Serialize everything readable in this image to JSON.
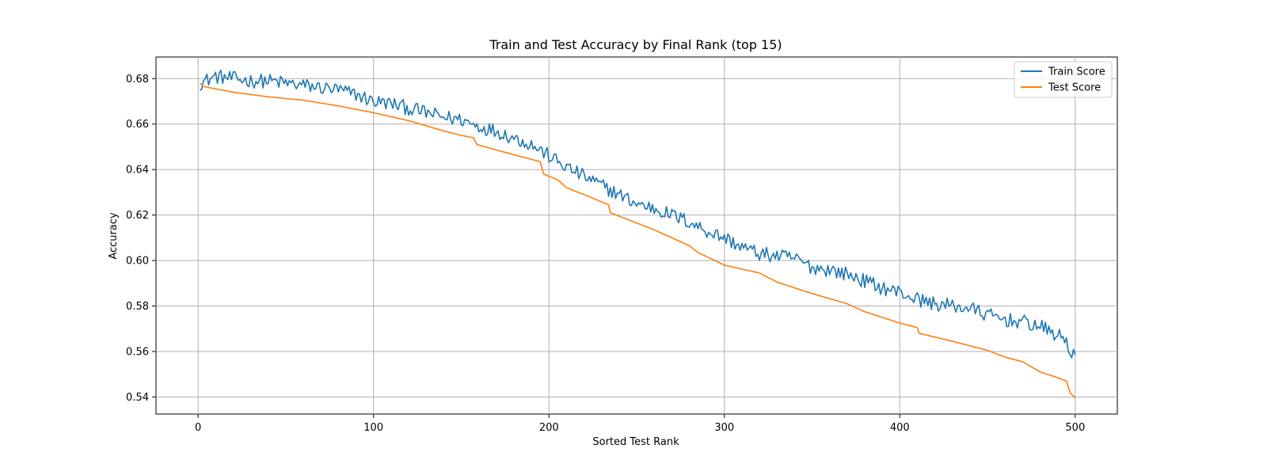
{
  "chart_data": {
    "type": "line",
    "title": "Train and Test Accuracy by Final Rank (top 15)",
    "xlabel": "Sorted Test Rank",
    "ylabel": "Accuracy",
    "xlim": [
      -24,
      524
    ],
    "ylim": [
      0.5325,
      0.6895
    ],
    "x_ticks": [
      0,
      100,
      200,
      300,
      400,
      500
    ],
    "y_ticks": [
      0.54,
      0.56,
      0.58,
      0.6,
      0.62,
      0.64,
      0.66,
      0.68
    ],
    "y_tick_labels": [
      "0.54",
      "0.56",
      "0.58",
      "0.60",
      "0.62",
      "0.64",
      "0.66",
      "0.68"
    ],
    "grid": true,
    "legend_position": "top-right",
    "x_points": [
      1,
      500
    ],
    "series": [
      {
        "name": "Train Score",
        "color": "#1f77b4",
        "anchors": [
          [
            1,
            0.678
          ],
          [
            10,
            0.681
          ],
          [
            20,
            0.68
          ],
          [
            30,
            0.679
          ],
          [
            40,
            0.679
          ],
          [
            50,
            0.678
          ],
          [
            60,
            0.677
          ],
          [
            70,
            0.676
          ],
          [
            80,
            0.675
          ],
          [
            90,
            0.673
          ],
          [
            100,
            0.67
          ],
          [
            110,
            0.669
          ],
          [
            120,
            0.667
          ],
          [
            130,
            0.665
          ],
          [
            140,
            0.663
          ],
          [
            150,
            0.662
          ],
          [
            160,
            0.659
          ],
          [
            170,
            0.657
          ],
          [
            180,
            0.654
          ],
          [
            190,
            0.651
          ],
          [
            200,
            0.646
          ],
          [
            210,
            0.641
          ],
          [
            220,
            0.637
          ],
          [
            230,
            0.633
          ],
          [
            240,
            0.629
          ],
          [
            250,
            0.625
          ],
          [
            260,
            0.623
          ],
          [
            270,
            0.62
          ],
          [
            280,
            0.617
          ],
          [
            290,
            0.613
          ],
          [
            300,
            0.61
          ],
          [
            310,
            0.606
          ],
          [
            320,
            0.603
          ],
          [
            330,
            0.602
          ],
          [
            340,
            0.601
          ],
          [
            350,
            0.597
          ],
          [
            360,
            0.596
          ],
          [
            370,
            0.594
          ],
          [
            380,
            0.591
          ],
          [
            390,
            0.588
          ],
          [
            400,
            0.586
          ],
          [
            410,
            0.583
          ],
          [
            420,
            0.581
          ],
          [
            430,
            0.58
          ],
          [
            440,
            0.579
          ],
          [
            450,
            0.576
          ],
          [
            460,
            0.574
          ],
          [
            470,
            0.573
          ],
          [
            480,
            0.571
          ],
          [
            490,
            0.567
          ],
          [
            495,
            0.565
          ],
          [
            497,
            0.56
          ],
          [
            500,
            0.558
          ]
        ],
        "noise": 0.0032
      },
      {
        "name": "Test Score",
        "color": "#ff7f0e",
        "anchors": [
          [
            1,
            0.678
          ],
          [
            3,
            0.6765
          ],
          [
            10,
            0.6755
          ],
          [
            20,
            0.674
          ],
          [
            40,
            0.672
          ],
          [
            60,
            0.6705
          ],
          [
            80,
            0.668
          ],
          [
            100,
            0.665
          ],
          [
            120,
            0.6615
          ],
          [
            140,
            0.657
          ],
          [
            150,
            0.655
          ],
          [
            157,
            0.654
          ],
          [
            159,
            0.651
          ],
          [
            180,
            0.6465
          ],
          [
            195,
            0.6435
          ],
          [
            197,
            0.638
          ],
          [
            205,
            0.6355
          ],
          [
            210,
            0.632
          ],
          [
            220,
            0.629
          ],
          [
            234,
            0.6245
          ],
          [
            235,
            0.621
          ],
          [
            260,
            0.6135
          ],
          [
            280,
            0.6065
          ],
          [
            285,
            0.6035
          ],
          [
            300,
            0.598
          ],
          [
            320,
            0.5945
          ],
          [
            330,
            0.5905
          ],
          [
            350,
            0.5855
          ],
          [
            370,
            0.581
          ],
          [
            380,
            0.5775
          ],
          [
            400,
            0.5725
          ],
          [
            410,
            0.5705
          ],
          [
            411,
            0.568
          ],
          [
            430,
            0.5645
          ],
          [
            440,
            0.5625
          ],
          [
            450,
            0.5605
          ],
          [
            460,
            0.5575
          ],
          [
            470,
            0.5555
          ],
          [
            480,
            0.551
          ],
          [
            490,
            0.5485
          ],
          [
            495,
            0.547
          ],
          [
            497,
            0.542
          ],
          [
            500,
            0.5395
          ]
        ],
        "noise": 0
      }
    ]
  }
}
